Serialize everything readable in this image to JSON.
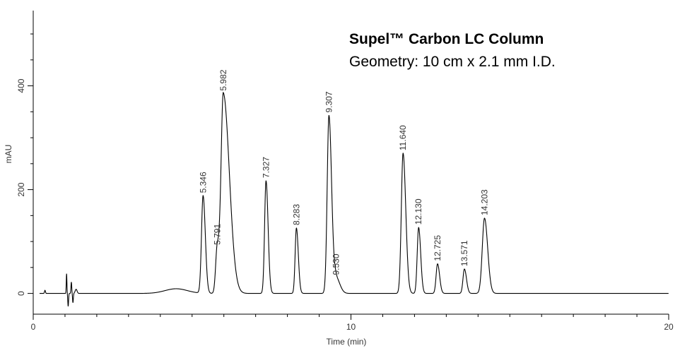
{
  "chart_data": {
    "type": "line",
    "xlabel": "Time (min)",
    "ylabel": "mAU",
    "xlim": [
      0,
      20
    ],
    "ylim": [
      -40,
      545
    ],
    "x_ticks": [
      0,
      10,
      20
    ],
    "y_ticks": [
      0,
      200,
      400
    ],
    "grid": false,
    "line_color": "#000000",
    "annotations": [
      "Supel™ Carbon LC Column",
      "Geometry:  10 cm x 2.1 mm I.D."
    ],
    "peaks": [
      {
        "rt": "5.346",
        "height": 188
      },
      {
        "rt": "5.791",
        "height": 88
      },
      {
        "rt": "5.982",
        "height": 385
      },
      {
        "rt": "7.327",
        "height": 217
      },
      {
        "rt": "8.283",
        "height": 126
      },
      {
        "rt": "9.307",
        "height": 343
      },
      {
        "rt": "9.530",
        "height": 30
      },
      {
        "rt": "11.640",
        "height": 270
      },
      {
        "rt": "12.130",
        "height": 127
      },
      {
        "rt": "12.725",
        "height": 57
      },
      {
        "rt": "13.571",
        "height": 47
      },
      {
        "rt": "14.203",
        "height": 145
      }
    ]
  }
}
